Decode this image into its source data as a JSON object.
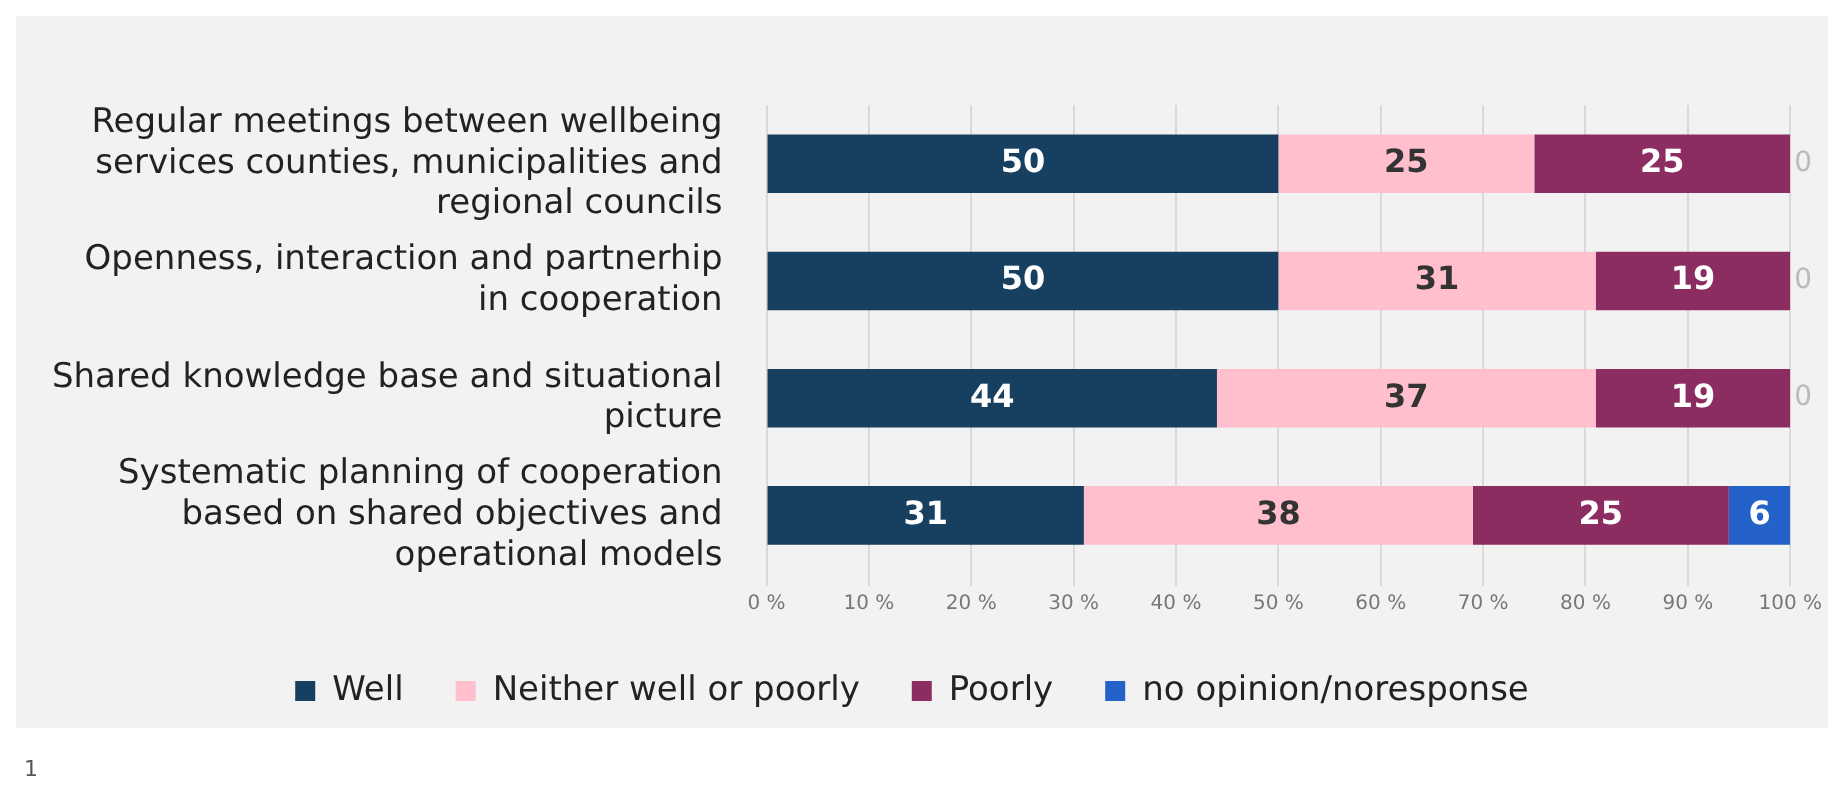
{
  "chart_data": {
    "type": "bar",
    "orientation": "horizontal",
    "stacked": true,
    "categories": [
      "Regular meetings between wellbeing services counties, municipalities and regional councils",
      "Openness, interaction and partnerhip in cooperation",
      "Shared knowledge base and situational picture",
      "Systematic planning of cooperation based on shared objectives and operational models"
    ],
    "series": [
      {
        "name": "Well",
        "color": "#173f5f",
        "values": [
          50,
          50,
          44,
          31
        ]
      },
      {
        "name": "Neither well or poorly",
        "color": "#ffbfcc",
        "values": [
          25,
          31,
          37,
          38
        ]
      },
      {
        "name": "Poorly",
        "color": "#8c2d62",
        "values": [
          25,
          19,
          19,
          25
        ]
      },
      {
        "name": "no opinion/noresponse",
        "color": "#2461c9",
        "values": [
          0,
          0,
          0,
          6
        ]
      }
    ],
    "xlim": [
      0,
      100
    ],
    "xticks": [
      {
        "value": 0,
        "label": "0 %"
      },
      {
        "value": 10,
        "label": "10 %"
      },
      {
        "value": 20,
        "label": "20 %"
      },
      {
        "value": 30,
        "label": "30 %"
      },
      {
        "value": 40,
        "label": "40 %"
      },
      {
        "value": 50,
        "label": "50 %"
      },
      {
        "value": 60,
        "label": "60 %"
      },
      {
        "value": 70,
        "label": "70 %"
      },
      {
        "value": 80,
        "label": "80 %"
      },
      {
        "value": 90,
        "label": "90 %"
      },
      {
        "value": 100,
        "label": "100 %"
      }
    ],
    "grid": "x",
    "legend": "bottom",
    "data_labels": true,
    "annotations": [
      "1"
    ]
  }
}
